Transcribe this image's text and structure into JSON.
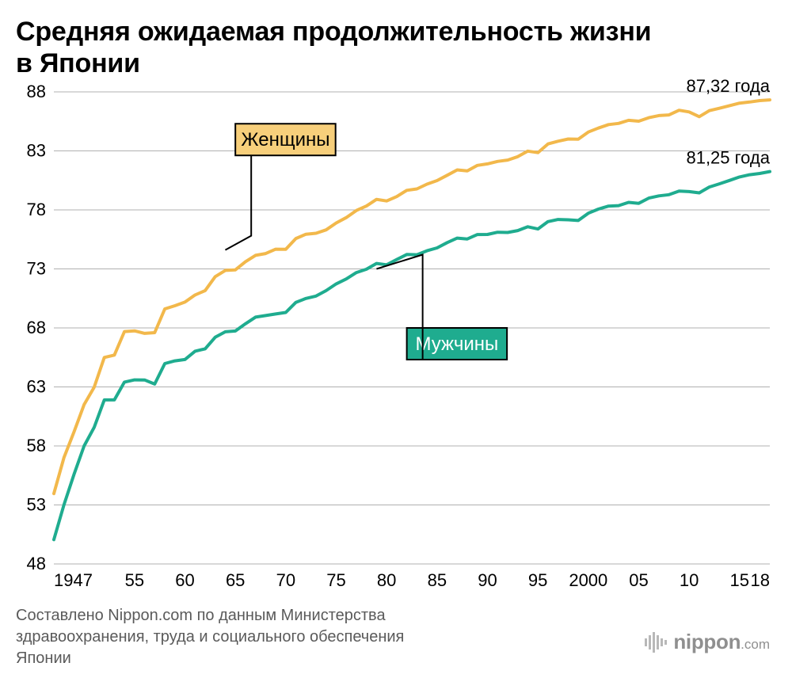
{
  "title_line1": "Средняя ожидаемая продолжительность жизни",
  "title_line2": "в Японии",
  "source_line1": "Составлено Nippon.com по данным Министерства",
  "source_line2": "здравоохранения, труда и социального обеспечения",
  "source_line3": "Японии",
  "logo_name": "nippon",
  "logo_suffix": ".com",
  "chart": {
    "type": "line",
    "xlim": [
      1947,
      2018
    ],
    "ylim": [
      48,
      88
    ],
    "yticks": [
      48,
      53,
      58,
      63,
      68,
      73,
      78,
      83,
      88
    ],
    "xticks": [
      {
        "value": 1947,
        "label": "1947"
      },
      {
        "value": 1955,
        "label": "55"
      },
      {
        "value": 1960,
        "label": "60"
      },
      {
        "value": 1965,
        "label": "65"
      },
      {
        "value": 1970,
        "label": "70"
      },
      {
        "value": 1975,
        "label": "75"
      },
      {
        "value": 1980,
        "label": "80"
      },
      {
        "value": 1985,
        "label": "85"
      },
      {
        "value": 1990,
        "label": "90"
      },
      {
        "value": 1995,
        "label": "95"
      },
      {
        "value": 2000,
        "label": "2000"
      },
      {
        "value": 2005,
        "label": "05"
      },
      {
        "value": 2010,
        "label": "10"
      },
      {
        "value": 2015,
        "label": "15"
      },
      {
        "value": 2018,
        "label": "18"
      }
    ],
    "background_color": "#ffffff",
    "grid_color": "#b0b0b0",
    "grid_width": 1,
    "axis_fontsize": 22,
    "line_width": 4,
    "series": {
      "women": {
        "label": "Женщины",
        "color": "#f2b84b",
        "fill": "#f7cf7b",
        "end_label": "87,32 года",
        "legend_box": {
          "x": 1965,
          "y": 85.3
        },
        "pointer": {
          "from_year": 1971.5,
          "from_box_edge": true,
          "to_year": 1964,
          "to_value": 74.6
        },
        "data": {
          "1947": 53.96,
          "1948": 57.0,
          "1949": 59.2,
          "1950": 61.5,
          "1951": 62.97,
          "1952": 65.5,
          "1953": 65.7,
          "1954": 67.69,
          "1955": 67.75,
          "1956": 67.54,
          "1957": 67.6,
          "1958": 69.61,
          "1959": 69.88,
          "1960": 70.19,
          "1961": 70.79,
          "1962": 71.16,
          "1963": 72.34,
          "1964": 72.87,
          "1965": 72.92,
          "1966": 73.61,
          "1967": 74.15,
          "1968": 74.3,
          "1969": 74.67,
          "1970": 74.66,
          "1971": 75.58,
          "1972": 75.94,
          "1973": 76.02,
          "1974": 76.31,
          "1975": 76.89,
          "1976": 77.35,
          "1977": 77.95,
          "1978": 78.33,
          "1979": 78.89,
          "1980": 78.76,
          "1981": 79.13,
          "1982": 79.66,
          "1983": 79.78,
          "1984": 80.18,
          "1985": 80.48,
          "1986": 80.93,
          "1987": 81.39,
          "1988": 81.3,
          "1989": 81.77,
          "1990": 81.9,
          "1991": 82.11,
          "1992": 82.22,
          "1993": 82.51,
          "1994": 82.98,
          "1995": 82.85,
          "1996": 83.59,
          "1997": 83.82,
          "1998": 84.01,
          "1999": 83.99,
          "2000": 84.6,
          "2001": 84.93,
          "2002": 85.23,
          "2003": 85.33,
          "2004": 85.59,
          "2005": 85.52,
          "2006": 85.81,
          "2007": 85.99,
          "2008": 86.05,
          "2009": 86.44,
          "2010": 86.3,
          "2011": 85.9,
          "2012": 86.41,
          "2013": 86.61,
          "2014": 86.83,
          "2015": 87.05,
          "2016": 87.14,
          "2017": 87.26,
          "2018": 87.32
        }
      },
      "men": {
        "label": "Мужчины",
        "color": "#1fac8f",
        "fill": "#1fac8f",
        "text_color": "#ffffff",
        "end_label": "81,25 года",
        "legend_box": {
          "x": 1982,
          "y": 68.0
        },
        "pointer": {
          "from_year": 1986,
          "from_box_edge": true,
          "to_year": 1979,
          "to_value": 73.0
        },
        "data": {
          "1947": 50.06,
          "1948": 53.0,
          "1949": 55.6,
          "1950": 58.0,
          "1951": 59.57,
          "1952": 61.9,
          "1953": 61.9,
          "1954": 63.41,
          "1955": 63.6,
          "1956": 63.59,
          "1957": 63.24,
          "1958": 64.98,
          "1959": 65.21,
          "1960": 65.32,
          "1961": 66.03,
          "1962": 66.23,
          "1963": 67.21,
          "1964": 67.67,
          "1965": 67.74,
          "1966": 68.35,
          "1967": 68.91,
          "1968": 69.05,
          "1969": 69.18,
          "1970": 69.31,
          "1971": 70.17,
          "1972": 70.5,
          "1973": 70.7,
          "1974": 71.16,
          "1975": 71.73,
          "1976": 72.15,
          "1977": 72.69,
          "1978": 72.97,
          "1979": 73.46,
          "1980": 73.35,
          "1981": 73.79,
          "1982": 74.22,
          "1983": 74.2,
          "1984": 74.54,
          "1985": 74.78,
          "1986": 75.23,
          "1987": 75.61,
          "1988": 75.54,
          "1989": 75.91,
          "1990": 75.92,
          "1991": 76.11,
          "1992": 76.09,
          "1993": 76.25,
          "1994": 76.57,
          "1995": 76.38,
          "1996": 77.01,
          "1997": 77.19,
          "1998": 77.16,
          "1999": 77.1,
          "2000": 77.72,
          "2001": 78.07,
          "2002": 78.32,
          "2003": 78.36,
          "2004": 78.64,
          "2005": 78.56,
          "2006": 79.0,
          "2007": 79.19,
          "2008": 79.29,
          "2009": 79.59,
          "2010": 79.55,
          "2011": 79.44,
          "2012": 79.94,
          "2013": 80.21,
          "2014": 80.5,
          "2015": 80.79,
          "2016": 80.98,
          "2017": 81.09,
          "2018": 81.25
        }
      }
    }
  }
}
